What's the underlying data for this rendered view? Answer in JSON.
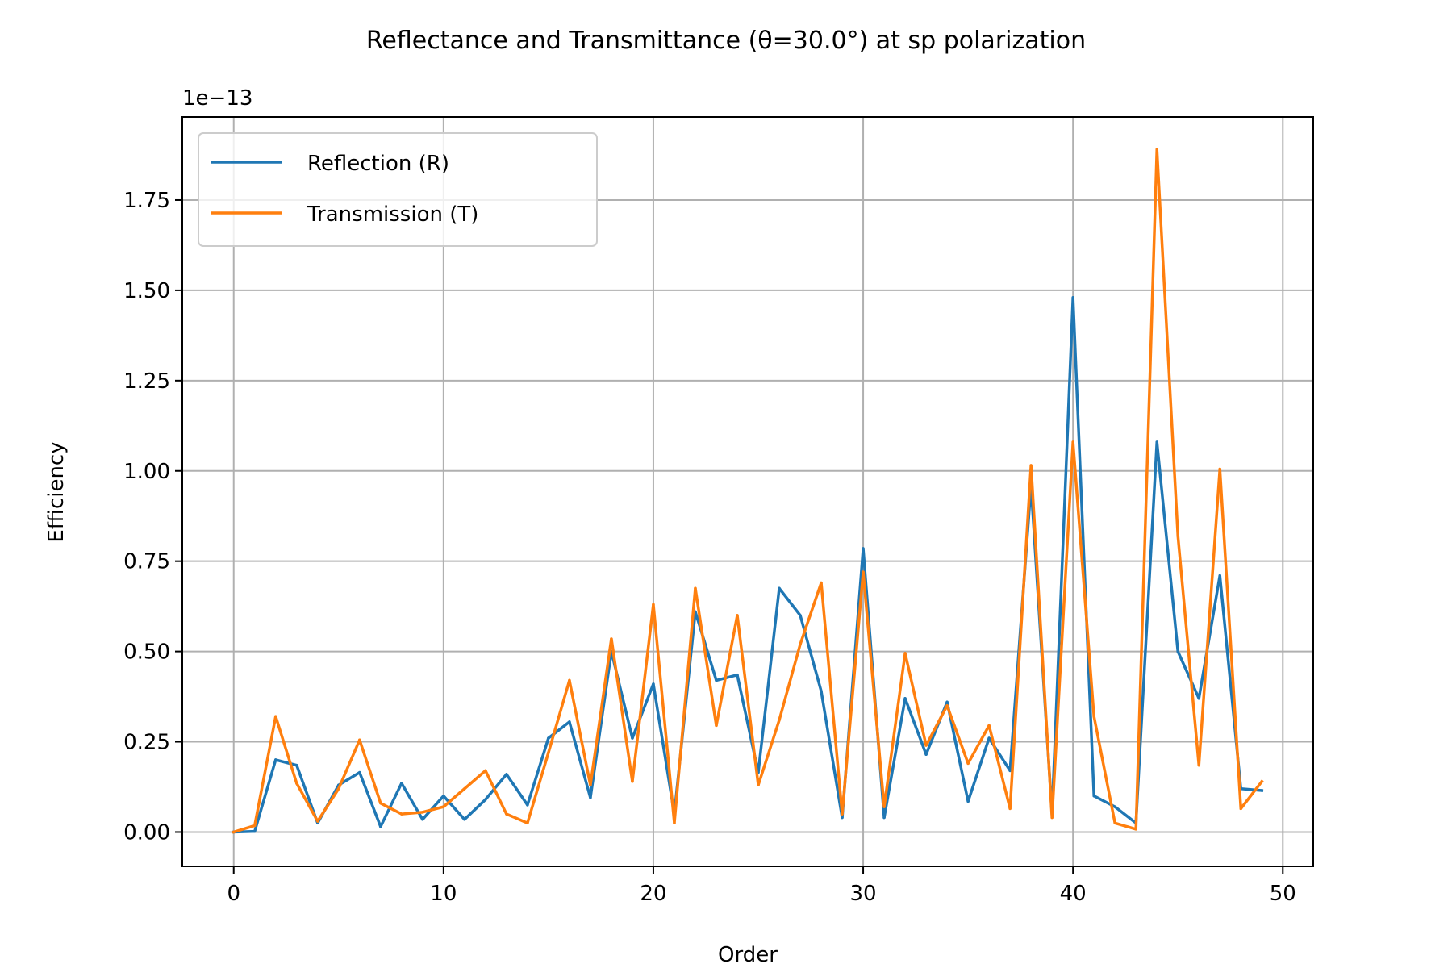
{
  "chart_data": {
    "type": "line",
    "title": "Reflectance and Transmittance (θ=30.0°) at sp polarization",
    "xlabel": "Order",
    "ylabel": "Efficiency",
    "y_offset_label": "1e−13",
    "xlim": [
      -2.45,
      51.45
    ],
    "ylim": [
      -0.095,
      1.98
    ],
    "x_ticks": [
      0,
      10,
      20,
      30,
      40,
      50
    ],
    "x_tick_labels": [
      "0",
      "10",
      "20",
      "30",
      "40",
      "50"
    ],
    "y_ticks": [
      0,
      0.25,
      0.5,
      0.75,
      1.0,
      1.25,
      1.5,
      1.75
    ],
    "y_tick_labels": [
      "0.00",
      "0.25",
      "0.50",
      "0.75",
      "1.00",
      "1.25",
      "1.50",
      "1.75"
    ],
    "grid": true,
    "legend_position": "top-left",
    "x": [
      0,
      1,
      2,
      3,
      4,
      5,
      6,
      7,
      8,
      9,
      10,
      11,
      12,
      13,
      14,
      15,
      16,
      17,
      18,
      19,
      20,
      21,
      22,
      23,
      24,
      25,
      26,
      27,
      28,
      29,
      30,
      31,
      32,
      33,
      34,
      35,
      36,
      37,
      38,
      39,
      40,
      41,
      42,
      43,
      44,
      45,
      46,
      47,
      48,
      49
    ],
    "series": [
      {
        "name": "Reflection (R)",
        "color": "#1f77b4",
        "values": [
          0.0,
          0.002,
          0.2,
          0.185,
          0.025,
          0.13,
          0.165,
          0.015,
          0.135,
          0.035,
          0.1,
          0.035,
          0.09,
          0.16,
          0.075,
          0.26,
          0.305,
          0.095,
          0.5,
          0.26,
          0.41,
          0.05,
          0.61,
          0.42,
          0.435,
          0.165,
          0.675,
          0.6,
          0.39,
          0.04,
          0.785,
          0.04,
          0.37,
          0.215,
          0.36,
          0.085,
          0.26,
          0.17,
          0.96,
          0.05,
          1.48,
          0.1,
          0.07,
          0.025,
          1.08,
          0.5,
          0.37,
          0.71,
          0.12,
          0.115
        ]
      },
      {
        "name": "Transmission (T)",
        "color": "#ff7f0e",
        "values": [
          0.0,
          0.018,
          0.32,
          0.135,
          0.03,
          0.12,
          0.255,
          0.08,
          0.05,
          0.055,
          0.07,
          0.12,
          0.17,
          0.05,
          0.025,
          0.22,
          0.42,
          0.13,
          0.535,
          0.14,
          0.63,
          0.025,
          0.675,
          0.295,
          0.6,
          0.13,
          0.31,
          0.52,
          0.69,
          0.05,
          0.72,
          0.07,
          0.495,
          0.24,
          0.35,
          0.19,
          0.295,
          0.065,
          1.015,
          0.04,
          1.08,
          0.32,
          0.025,
          0.008,
          1.89,
          0.82,
          0.185,
          1.005,
          0.065,
          0.14
        ]
      }
    ]
  }
}
